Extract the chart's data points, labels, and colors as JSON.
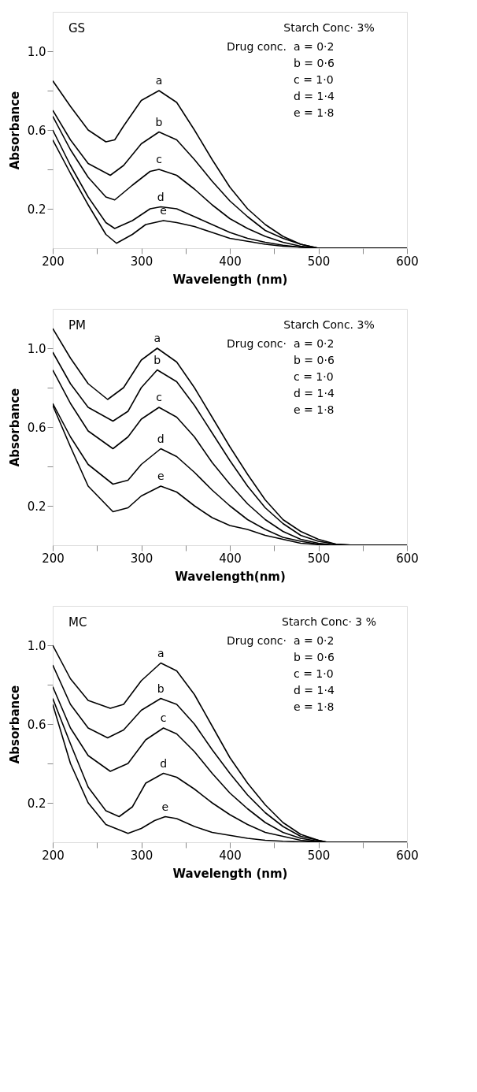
{
  "chart_data": [
    {
      "type": "line",
      "title": "GS",
      "xlabel": "Wavelength (nm)",
      "ylabel": "Absorbance",
      "annotations": [
        "Starch Conc· 3%",
        "Drug conc.",
        "a = 0·2",
        "b = 0·6",
        "c = 1·0",
        "d = 1·4",
        "e = 1·8"
      ],
      "xlim": [
        200,
        600
      ],
      "ylim": [
        0,
        1.2
      ],
      "xticks": [
        200,
        {
          "value": 250,
          "label": null
        },
        300,
        {
          "value": 350,
          "label": null
        },
        400,
        {
          "value": 450,
          "label": null
        },
        500,
        {
          "value": 550,
          "label": null
        },
        600
      ],
      "yticks": [
        {
          "value": 0.2,
          "label": "0.2"
        },
        {
          "value": 0.4,
          "label": null
        },
        {
          "value": 0.6,
          "label": "0.6"
        },
        {
          "value": 0.8,
          "label": null
        },
        {
          "value": 1.0,
          "label": "1.0"
        }
      ],
      "grid": false,
      "legend": false,
      "marker": "none",
      "line_style": "solid",
      "series": [
        {
          "name": "a",
          "color": "#000000",
          "x": [
            200,
            220,
            240,
            260,
            270,
            280,
            300,
            320,
            340,
            360,
            380,
            400,
            420,
            440,
            460,
            480,
            500,
            600
          ],
          "values": [
            0.85,
            0.72,
            0.6,
            0.54,
            0.55,
            0.62,
            0.75,
            0.8,
            0.74,
            0.6,
            0.45,
            0.31,
            0.2,
            0.12,
            0.06,
            0.02,
            0,
            0
          ]
        },
        {
          "name": "b",
          "color": "#000000",
          "x": [
            200,
            220,
            240,
            265,
            280,
            300,
            320,
            340,
            360,
            380,
            400,
            420,
            440,
            460,
            480,
            500,
            600
          ],
          "values": [
            0.7,
            0.55,
            0.43,
            0.37,
            0.42,
            0.53,
            0.59,
            0.55,
            0.45,
            0.34,
            0.24,
            0.16,
            0.09,
            0.05,
            0.02,
            0,
            0
          ]
        },
        {
          "name": "c",
          "color": "#000000",
          "x": [
            200,
            220,
            240,
            260,
            270,
            290,
            310,
            320,
            340,
            360,
            380,
            400,
            420,
            440,
            460,
            480,
            500,
            600
          ],
          "values": [
            0.67,
            0.5,
            0.36,
            0.26,
            0.245,
            0.32,
            0.39,
            0.4,
            0.37,
            0.3,
            0.22,
            0.15,
            0.1,
            0.06,
            0.03,
            0.01,
            0,
            0
          ]
        },
        {
          "name": "d",
          "color": "#000000",
          "x": [
            200,
            220,
            240,
            260,
            270,
            290,
            310,
            322,
            340,
            360,
            380,
            400,
            420,
            440,
            460,
            480,
            500,
            600
          ],
          "values": [
            0.6,
            0.42,
            0.26,
            0.13,
            0.1,
            0.14,
            0.2,
            0.21,
            0.2,
            0.16,
            0.12,
            0.08,
            0.05,
            0.03,
            0.015,
            0.005,
            0,
            0
          ]
        },
        {
          "name": "e",
          "color": "#000000",
          "x": [
            200,
            220,
            240,
            260,
            272,
            290,
            305,
            325,
            340,
            360,
            380,
            400,
            420,
            440,
            460,
            480,
            500,
            600
          ],
          "values": [
            0.55,
            0.38,
            0.22,
            0.07,
            0.025,
            0.07,
            0.12,
            0.14,
            0.13,
            0.11,
            0.08,
            0.05,
            0.035,
            0.02,
            0.01,
            0.005,
            0,
            0
          ]
        }
      ]
    },
    {
      "type": "line",
      "title": "PM",
      "xlabel": "Wavelength(nm)",
      "ylabel": "Absorbance",
      "annotations": [
        "Starch Conc. 3%",
        "Drug conc·",
        "a = 0·2",
        "b = 0·6",
        "c = 1·0",
        "d = 1·4",
        "e = 1·8"
      ],
      "xlim": [
        200,
        600
      ],
      "ylim": [
        0,
        1.2
      ],
      "xticks": [
        200,
        {
          "value": 250,
          "label": null
        },
        300,
        {
          "value": 350,
          "label": null
        },
        400,
        {
          "value": 450,
          "label": null
        },
        500,
        {
          "value": 550,
          "label": null
        },
        600
      ],
      "yticks": [
        {
          "value": 0.2,
          "label": "0.2"
        },
        {
          "value": 0.4,
          "label": null
        },
        {
          "value": 0.6,
          "label": "0.6"
        },
        {
          "value": 0.8,
          "label": null
        },
        {
          "value": 1.0,
          "label": "1.0"
        }
      ],
      "grid": false,
      "legend": false,
      "marker": "none",
      "line_style": "solid",
      "series": [
        {
          "name": "a",
          "color": "#000000",
          "x": [
            200,
            220,
            240,
            262,
            280,
            300,
            318,
            340,
            360,
            380,
            400,
            420,
            440,
            460,
            480,
            500,
            520,
            540,
            600
          ],
          "values": [
            1.1,
            0.95,
            0.82,
            0.74,
            0.8,
            0.94,
            1.0,
            0.93,
            0.8,
            0.65,
            0.5,
            0.36,
            0.23,
            0.13,
            0.07,
            0.03,
            0.005,
            0,
            0
          ]
        },
        {
          "name": "b",
          "color": "#000000",
          "x": [
            200,
            220,
            240,
            268,
            285,
            300,
            318,
            340,
            360,
            380,
            400,
            420,
            440,
            460,
            480,
            500,
            520,
            540,
            600
          ],
          "values": [
            0.98,
            0.82,
            0.7,
            0.63,
            0.68,
            0.8,
            0.89,
            0.83,
            0.71,
            0.57,
            0.43,
            0.3,
            0.19,
            0.11,
            0.05,
            0.02,
            0.005,
            0,
            0
          ]
        },
        {
          "name": "c",
          "color": "#000000",
          "x": [
            200,
            220,
            240,
            268,
            285,
            300,
            320,
            340,
            360,
            380,
            400,
            420,
            440,
            460,
            480,
            500,
            520,
            600
          ],
          "values": [
            0.89,
            0.72,
            0.58,
            0.49,
            0.55,
            0.64,
            0.7,
            0.65,
            0.55,
            0.42,
            0.31,
            0.21,
            0.13,
            0.07,
            0.03,
            0.01,
            0,
            0
          ]
        },
        {
          "name": "d",
          "color": "#000000",
          "x": [
            200,
            220,
            240,
            268,
            285,
            300,
            322,
            340,
            360,
            380,
            400,
            420,
            440,
            460,
            480,
            500,
            520,
            600
          ],
          "values": [
            0.72,
            0.55,
            0.41,
            0.31,
            0.33,
            0.41,
            0.49,
            0.45,
            0.37,
            0.28,
            0.2,
            0.13,
            0.08,
            0.04,
            0.02,
            0.005,
            0,
            0
          ]
        },
        {
          "name": "e",
          "color": "#000000",
          "x": [
            200,
            220,
            240,
            268,
            285,
            300,
            322,
            340,
            360,
            380,
            400,
            420,
            440,
            460,
            480,
            500,
            520,
            600
          ],
          "values": [
            0.71,
            0.5,
            0.3,
            0.17,
            0.19,
            0.25,
            0.3,
            0.27,
            0.2,
            0.14,
            0.1,
            0.08,
            0.05,
            0.03,
            0.01,
            0.003,
            0,
            0
          ]
        }
      ]
    },
    {
      "type": "line",
      "title": "MC",
      "xlabel": "Wavelength (nm)",
      "ylabel": "Absorbance",
      "annotations": [
        "Starch Conc· 3 %",
        "Drug conc·",
        "a = 0·2",
        "b = 0·6",
        "c = 1·0",
        "d = 1·4",
        "e = 1·8"
      ],
      "xlim": [
        200,
        600
      ],
      "ylim": [
        0,
        1.2
      ],
      "xticks": [
        200,
        {
          "value": 250,
          "label": null
        },
        300,
        {
          "value": 350,
          "label": null
        },
        400,
        {
          "value": 450,
          "label": null
        },
        500,
        {
          "value": 550,
          "label": null
        },
        600
      ],
      "yticks": [
        {
          "value": 0.2,
          "label": "0.2"
        },
        {
          "value": 0.4,
          "label": null
        },
        {
          "value": 0.6,
          "label": "0.6"
        },
        {
          "value": 0.8,
          "label": null
        },
        {
          "value": 1.0,
          "label": "1.0"
        }
      ],
      "grid": false,
      "legend": false,
      "marker": "none",
      "line_style": "solid",
      "series": [
        {
          "name": "a",
          "color": "#000000",
          "x": [
            200,
            220,
            240,
            265,
            280,
            300,
            322,
            340,
            360,
            380,
            400,
            420,
            440,
            460,
            480,
            500,
            510,
            600
          ],
          "values": [
            1.0,
            0.83,
            0.72,
            0.68,
            0.7,
            0.82,
            0.91,
            0.87,
            0.75,
            0.59,
            0.43,
            0.3,
            0.19,
            0.1,
            0.04,
            0.01,
            0,
            0
          ]
        },
        {
          "name": "b",
          "color": "#000000",
          "x": [
            200,
            220,
            240,
            262,
            280,
            300,
            322,
            340,
            360,
            380,
            400,
            420,
            440,
            460,
            480,
            500,
            510,
            600
          ],
          "values": [
            0.9,
            0.7,
            0.58,
            0.53,
            0.57,
            0.67,
            0.73,
            0.7,
            0.6,
            0.47,
            0.35,
            0.24,
            0.15,
            0.08,
            0.03,
            0.01,
            0,
            0
          ]
        },
        {
          "name": "c",
          "color": "#000000",
          "x": [
            200,
            220,
            240,
            265,
            285,
            305,
            325,
            340,
            360,
            380,
            400,
            420,
            440,
            460,
            480,
            500,
            510,
            600
          ],
          "values": [
            0.79,
            0.58,
            0.44,
            0.36,
            0.4,
            0.52,
            0.58,
            0.55,
            0.46,
            0.35,
            0.25,
            0.17,
            0.1,
            0.05,
            0.02,
            0.005,
            0,
            0
          ]
        },
        {
          "name": "d",
          "color": "#000000",
          "x": [
            200,
            220,
            240,
            260,
            275,
            290,
            305,
            325,
            340,
            360,
            380,
            400,
            420,
            440,
            460,
            480,
            500,
            510,
            600
          ],
          "values": [
            0.73,
            0.5,
            0.28,
            0.16,
            0.13,
            0.18,
            0.3,
            0.35,
            0.33,
            0.27,
            0.2,
            0.14,
            0.09,
            0.05,
            0.03,
            0.01,
            0.003,
            0,
            0
          ]
        },
        {
          "name": "e",
          "color": "#000000",
          "x": [
            200,
            220,
            240,
            260,
            285,
            300,
            315,
            327,
            340,
            360,
            380,
            400,
            420,
            440,
            460,
            480,
            510,
            600
          ],
          "values": [
            0.7,
            0.4,
            0.2,
            0.09,
            0.045,
            0.07,
            0.11,
            0.13,
            0.12,
            0.08,
            0.05,
            0.035,
            0.02,
            0.01,
            0.005,
            0.002,
            0,
            0
          ]
        }
      ]
    }
  ]
}
